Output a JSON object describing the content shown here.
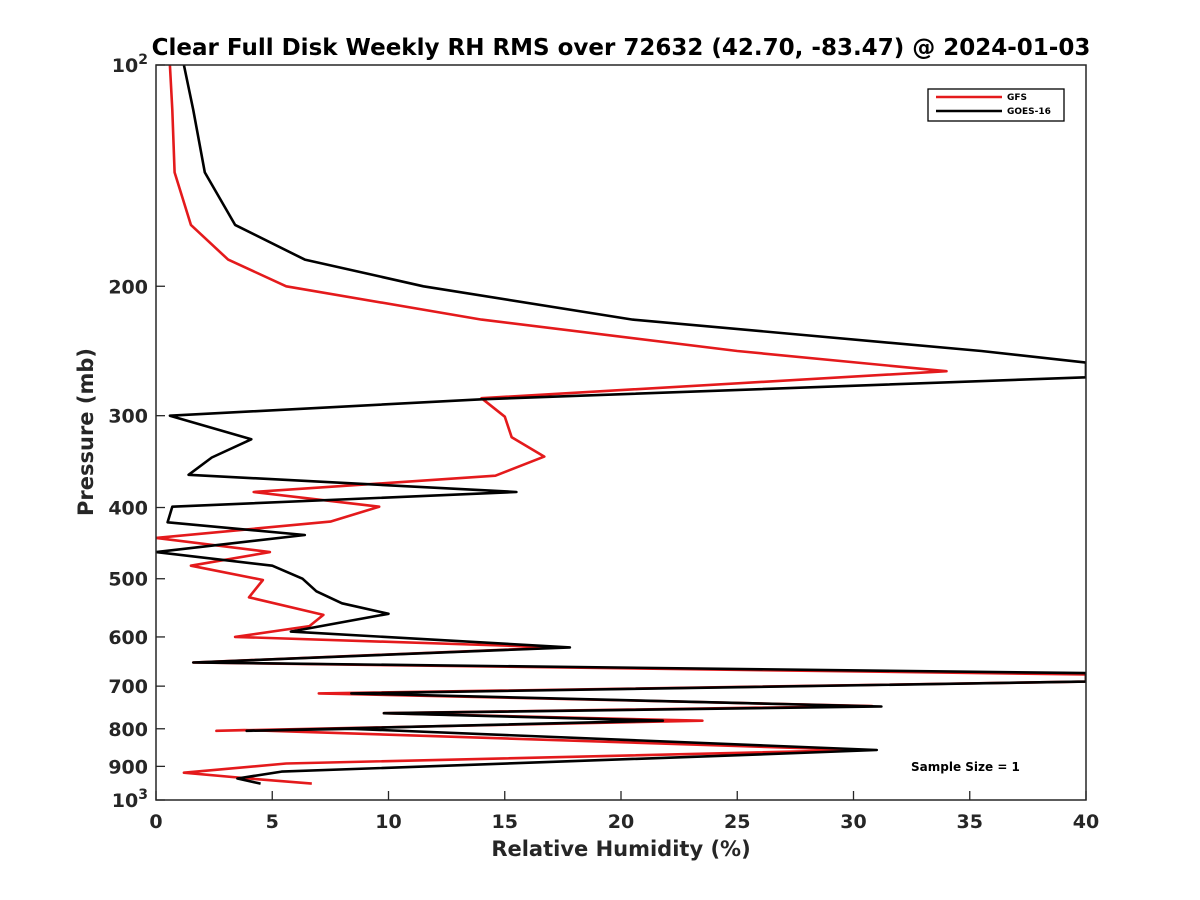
{
  "chart_data": {
    "type": "line",
    "title": "Clear Full Disk Weekly RH RMS over 72632 (42.70, -83.47) @ 2024-01-03",
    "xlabel": "Relative Humidity (%)",
    "ylabel": "Pressure (mb)",
    "xlim": [
      0,
      40
    ],
    "ylim": [
      100,
      1000
    ],
    "yscale": "log",
    "y_reversed": true,
    "x_ticks": [
      "0",
      "5",
      "10",
      "15",
      "20",
      "25",
      "30",
      "35",
      "40"
    ],
    "y_ticks": [
      {
        "value": 100,
        "base": "10",
        "exp": "2"
      },
      {
        "value": 200,
        "label": "200"
      },
      {
        "value": 300,
        "label": "300"
      },
      {
        "value": 400,
        "label": "400"
      },
      {
        "value": 500,
        "label": "500"
      },
      {
        "value": 600,
        "label": "600"
      },
      {
        "value": 700,
        "label": "700"
      },
      {
        "value": 800,
        "label": "800"
      },
      {
        "value": 900,
        "label": "900"
      },
      {
        "value": 1000,
        "base": "10",
        "exp": "3"
      }
    ],
    "grid": false,
    "legend_position": "top-right",
    "series": [
      {
        "name": "GFS",
        "color": "#e41a1c",
        "points": [
          [
            0.6,
            100
          ],
          [
            0.7,
            115
          ],
          [
            0.8,
            140
          ],
          [
            1.5,
            165
          ],
          [
            3.1,
            184
          ],
          [
            5.6,
            200
          ],
          [
            14.0,
            222
          ],
          [
            25.0,
            245
          ],
          [
            34.0,
            261
          ],
          [
            14.0,
            284
          ],
          [
            15.0,
            301
          ],
          [
            15.3,
            321
          ],
          [
            16.7,
            341
          ],
          [
            14.6,
            362
          ],
          [
            4.2,
            381
          ],
          [
            9.6,
            399
          ],
          [
            7.5,
            418
          ],
          [
            0.0,
            440
          ],
          [
            4.9,
            460
          ],
          [
            1.5,
            480
          ],
          [
            4.6,
            502
          ],
          [
            4.0,
            530
          ],
          [
            7.2,
            560
          ],
          [
            6.6,
            580
          ],
          [
            3.4,
            600
          ],
          [
            17.4,
            620
          ],
          [
            1.6,
            650
          ],
          [
            40.0,
            675
          ],
          [
            40.0,
            690
          ],
          [
            7.0,
            716
          ],
          [
            30.8,
            745
          ],
          [
            9.8,
            762
          ],
          [
            23.5,
            780
          ],
          [
            2.6,
            805
          ],
          [
            3.8,
            803
          ],
          [
            30.3,
            855
          ],
          [
            5.6,
            892
          ],
          [
            1.2,
            918
          ],
          [
            4.0,
            935
          ],
          [
            6.7,
            950
          ]
        ]
      },
      {
        "name": "GOES-16",
        "color": "#000000",
        "points": [
          [
            1.2,
            100
          ],
          [
            1.6,
            115
          ],
          [
            2.1,
            140
          ],
          [
            3.4,
            165
          ],
          [
            6.4,
            184
          ],
          [
            11.5,
            200
          ],
          [
            20.5,
            222
          ],
          [
            35.5,
            245
          ],
          [
            40.0,
            254
          ],
          [
            40.0,
            266
          ],
          [
            14.0,
            285
          ],
          [
            0.6,
            300
          ],
          [
            4.1,
            323
          ],
          [
            2.4,
            342
          ],
          [
            1.4,
            361
          ],
          [
            15.5,
            381
          ],
          [
            0.7,
            399
          ],
          [
            0.5,
            419
          ],
          [
            6.4,
            436
          ],
          [
            0.0,
            460
          ],
          [
            5.0,
            480
          ],
          [
            6.3,
            500
          ],
          [
            6.9,
            520
          ],
          [
            8.0,
            540
          ],
          [
            10.0,
            558
          ],
          [
            5.8,
            590
          ],
          [
            17.8,
            620
          ],
          [
            1.6,
            650
          ],
          [
            40.0,
            672
          ],
          [
            40.0,
            690
          ],
          [
            8.4,
            716
          ],
          [
            31.2,
            746
          ],
          [
            9.8,
            762
          ],
          [
            21.8,
            780
          ],
          [
            3.9,
            805
          ],
          [
            8.4,
            800
          ],
          [
            31.0,
            855
          ],
          [
            25.5,
            868
          ],
          [
            5.4,
            915
          ],
          [
            3.5,
            935
          ],
          [
            4.5,
            950
          ]
        ]
      }
    ],
    "annotation": "Sample Size = 1"
  }
}
